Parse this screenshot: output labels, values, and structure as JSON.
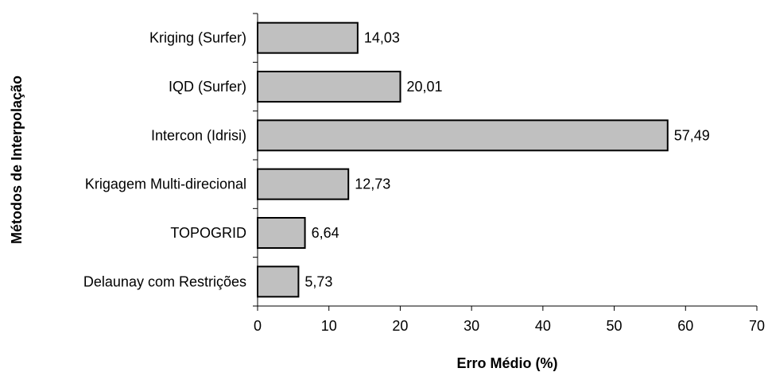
{
  "chart_data": {
    "type": "bar",
    "orientation": "horizontal",
    "categories": [
      "Kriging (Surfer)",
      "IQD (Surfer)",
      "Intercon (Idrisi)",
      "Krigagem Multi-direcional",
      "TOPOGRID",
      "Delaunay com Restrições"
    ],
    "values": [
      14.03,
      20.01,
      57.49,
      12.73,
      6.64,
      5.73
    ],
    "value_labels": [
      "14,03",
      "20,01",
      "57,49",
      "12,73",
      "6,64",
      "5,73"
    ],
    "xlabel": "Erro Médio (%)",
    "ylabel": "Métodos de Interpolação",
    "xlim": [
      0,
      70
    ],
    "xticks": [
      0,
      10,
      20,
      30,
      40,
      50,
      60,
      70
    ],
    "xtick_labels": [
      "0",
      "10",
      "20",
      "30",
      "40",
      "50",
      "60",
      "70"
    ],
    "grid": false,
    "legend": "none",
    "colors": {
      "bar_fill": "#c0c0c0",
      "bar_stroke": "#000000",
      "axis": "#000000",
      "text": "#000000"
    }
  }
}
